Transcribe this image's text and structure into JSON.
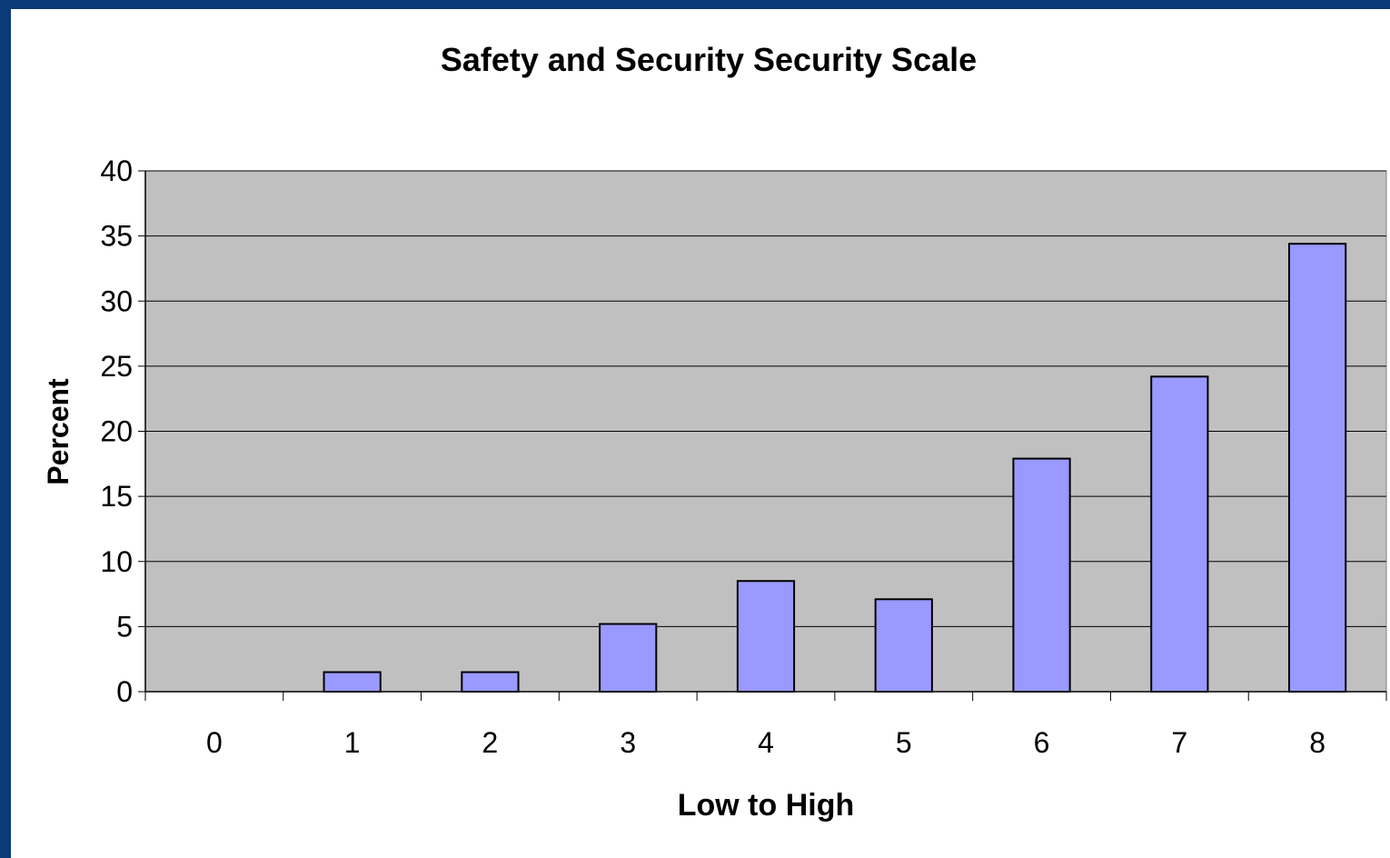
{
  "chart_data": {
    "type": "bar",
    "title": "Safety and Security Security Scale",
    "xlabel": "Low to High",
    "ylabel": "Percent",
    "categories": [
      "0",
      "1",
      "2",
      "3",
      "4",
      "5",
      "6",
      "7",
      "8"
    ],
    "values": [
      0,
      1.5,
      1.5,
      5.2,
      8.5,
      7.1,
      17.9,
      24.2,
      34.4
    ],
    "ylim": [
      0,
      40
    ],
    "yticks": [
      0,
      5,
      10,
      15,
      20,
      25,
      30,
      35,
      40
    ],
    "grid": true,
    "legend": "none",
    "colors": {
      "bar_fill": "#9999ff",
      "bar_stroke": "#000000",
      "plot_background": "#c0c0c0",
      "frame_border": "#0b3a78"
    }
  }
}
